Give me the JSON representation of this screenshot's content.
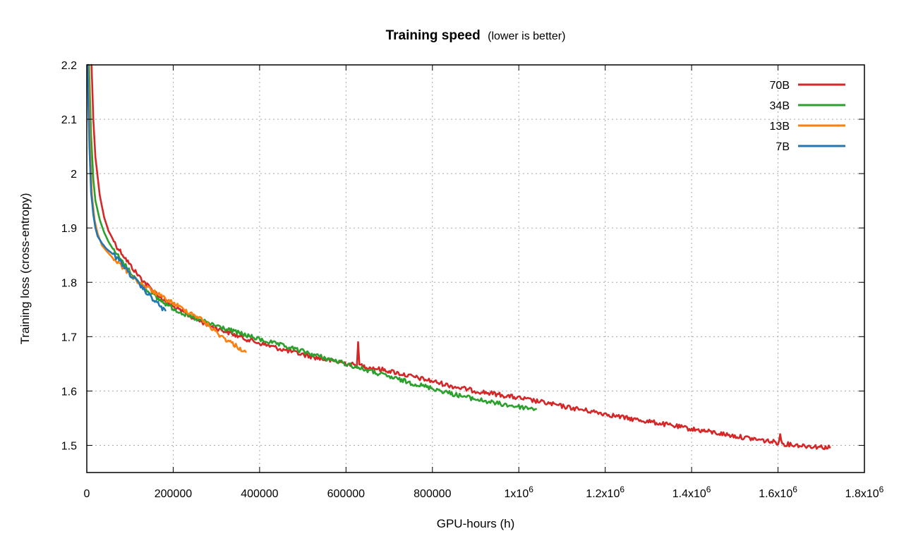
{
  "chart_data": {
    "type": "line",
    "title": "Training speed",
    "subtitle": "(lower is better)",
    "xlabel": "GPU-hours (h)",
    "ylabel": "Training loss (cross-entropy)",
    "xlim": [
      0,
      1800000
    ],
    "ylim": [
      1.45,
      2.2
    ],
    "grid": true,
    "legend_position": "top-right",
    "x_ticks": [
      {
        "value": 0,
        "label": "0"
      },
      {
        "value": 200000,
        "label": "200000"
      },
      {
        "value": 400000,
        "label": "400000"
      },
      {
        "value": 600000,
        "label": "600000"
      },
      {
        "value": 800000,
        "label": "800000"
      },
      {
        "value": 1000000,
        "label": "1x10",
        "sup": "6"
      },
      {
        "value": 1200000,
        "label": "1.2x10",
        "sup": "6"
      },
      {
        "value": 1400000,
        "label": "1.4x10",
        "sup": "6"
      },
      {
        "value": 1600000,
        "label": "1.6x10",
        "sup": "6"
      },
      {
        "value": 1800000,
        "label": "1.8x10",
        "sup": "6"
      }
    ],
    "y_ticks": [
      {
        "value": 1.5,
        "label": "1.5"
      },
      {
        "value": 1.6,
        "label": "1.6"
      },
      {
        "value": 1.7,
        "label": "1.7"
      },
      {
        "value": 1.8,
        "label": "1.8"
      },
      {
        "value": 1.9,
        "label": "1.9"
      },
      {
        "value": 2.0,
        "label": "2"
      },
      {
        "value": 2.1,
        "label": "2.1"
      },
      {
        "value": 2.2,
        "label": "2.2"
      }
    ],
    "series": [
      {
        "name": "70B",
        "color": "#d62728",
        "points": [
          [
            11000,
            2.2
          ],
          [
            15000,
            2.1
          ],
          [
            20000,
            2.03
          ],
          [
            30000,
            1.96
          ],
          [
            40000,
            1.92
          ],
          [
            50000,
            1.895
          ],
          [
            60000,
            1.88
          ],
          [
            70000,
            1.865
          ],
          [
            80000,
            1.855
          ],
          [
            100000,
            1.832
          ],
          [
            120000,
            1.812
          ],
          [
            140000,
            1.795
          ],
          [
            160000,
            1.78
          ],
          [
            180000,
            1.766
          ],
          [
            200000,
            1.755
          ],
          [
            240000,
            1.737
          ],
          [
            280000,
            1.722
          ],
          [
            320000,
            1.71
          ],
          [
            360000,
            1.698
          ],
          [
            400000,
            1.688
          ],
          [
            450000,
            1.677
          ],
          [
            500000,
            1.667
          ],
          [
            550000,
            1.658
          ],
          [
            600000,
            1.651
          ],
          [
            625000,
            1.647
          ],
          [
            628000,
            1.686
          ],
          [
            631000,
            1.648
          ],
          [
            650000,
            1.644
          ],
          [
            700000,
            1.637
          ],
          [
            750000,
            1.627
          ],
          [
            800000,
            1.618
          ],
          [
            850000,
            1.608
          ],
          [
            900000,
            1.6
          ],
          [
            950000,
            1.594
          ],
          [
            1000000,
            1.587
          ],
          [
            1050000,
            1.58
          ],
          [
            1100000,
            1.572
          ],
          [
            1150000,
            1.565
          ],
          [
            1200000,
            1.558
          ],
          [
            1250000,
            1.55
          ],
          [
            1300000,
            1.544
          ],
          [
            1350000,
            1.537
          ],
          [
            1400000,
            1.53
          ],
          [
            1450000,
            1.524
          ],
          [
            1500000,
            1.517
          ],
          [
            1550000,
            1.511
          ],
          [
            1600000,
            1.505
          ],
          [
            1605000,
            1.518
          ],
          [
            1610000,
            1.503
          ],
          [
            1650000,
            1.5
          ],
          [
            1700000,
            1.497
          ],
          [
            1720000,
            1.496
          ]
        ]
      },
      {
        "name": "34B",
        "color": "#2ca02c",
        "points": [
          [
            5000,
            2.2
          ],
          [
            10000,
            2.07
          ],
          [
            15000,
            1.99
          ],
          [
            20000,
            1.95
          ],
          [
            30000,
            1.915
          ],
          [
            40000,
            1.892
          ],
          [
            50000,
            1.875
          ],
          [
            60000,
            1.862
          ],
          [
            80000,
            1.84
          ],
          [
            100000,
            1.82
          ],
          [
            120000,
            1.8
          ],
          [
            140000,
            1.785
          ],
          [
            160000,
            1.772
          ],
          [
            180000,
            1.762
          ],
          [
            200000,
            1.752
          ],
          [
            220000,
            1.744
          ],
          [
            240000,
            1.736
          ],
          [
            260000,
            1.731
          ],
          [
            280000,
            1.725
          ],
          [
            300000,
            1.72
          ],
          [
            350000,
            1.707
          ],
          [
            400000,
            1.695
          ],
          [
            450000,
            1.684
          ],
          [
            500000,
            1.673
          ],
          [
            550000,
            1.661
          ],
          [
            600000,
            1.65
          ],
          [
            650000,
            1.638
          ],
          [
            700000,
            1.626
          ],
          [
            750000,
            1.615
          ],
          [
            800000,
            1.605
          ],
          [
            850000,
            1.594
          ],
          [
            900000,
            1.585
          ],
          [
            950000,
            1.577
          ],
          [
            1000000,
            1.571
          ],
          [
            1040000,
            1.567
          ]
        ]
      },
      {
        "name": "13B",
        "color": "#ff7f0e",
        "points": [
          [
            3000,
            2.2
          ],
          [
            8000,
            2.04
          ],
          [
            12000,
            1.96
          ],
          [
            18000,
            1.915
          ],
          [
            25000,
            1.89
          ],
          [
            35000,
            1.868
          ],
          [
            45000,
            1.858
          ],
          [
            60000,
            1.845
          ],
          [
            80000,
            1.83
          ],
          [
            100000,
            1.815
          ],
          [
            120000,
            1.8
          ],
          [
            140000,
            1.79
          ],
          [
            160000,
            1.78
          ],
          [
            180000,
            1.77
          ],
          [
            200000,
            1.762
          ],
          [
            220000,
            1.752
          ],
          [
            240000,
            1.744
          ],
          [
            260000,
            1.735
          ],
          [
            280000,
            1.722
          ],
          [
            300000,
            1.708
          ],
          [
            320000,
            1.696
          ],
          [
            340000,
            1.686
          ],
          [
            355000,
            1.678
          ],
          [
            368000,
            1.672
          ]
        ]
      },
      {
        "name": "7B",
        "color": "#1f77b4",
        "points": [
          [
            2000,
            2.2
          ],
          [
            6000,
            2.05
          ],
          [
            10000,
            1.965
          ],
          [
            15000,
            1.925
          ],
          [
            20000,
            1.9
          ],
          [
            25000,
            1.885
          ],
          [
            35000,
            1.872
          ],
          [
            45000,
            1.862
          ],
          [
            60000,
            1.852
          ],
          [
            80000,
            1.836
          ],
          [
            100000,
            1.815
          ],
          [
            120000,
            1.797
          ],
          [
            140000,
            1.78
          ],
          [
            160000,
            1.764
          ],
          [
            175000,
            1.752
          ],
          [
            182000,
            1.748
          ]
        ]
      }
    ]
  }
}
